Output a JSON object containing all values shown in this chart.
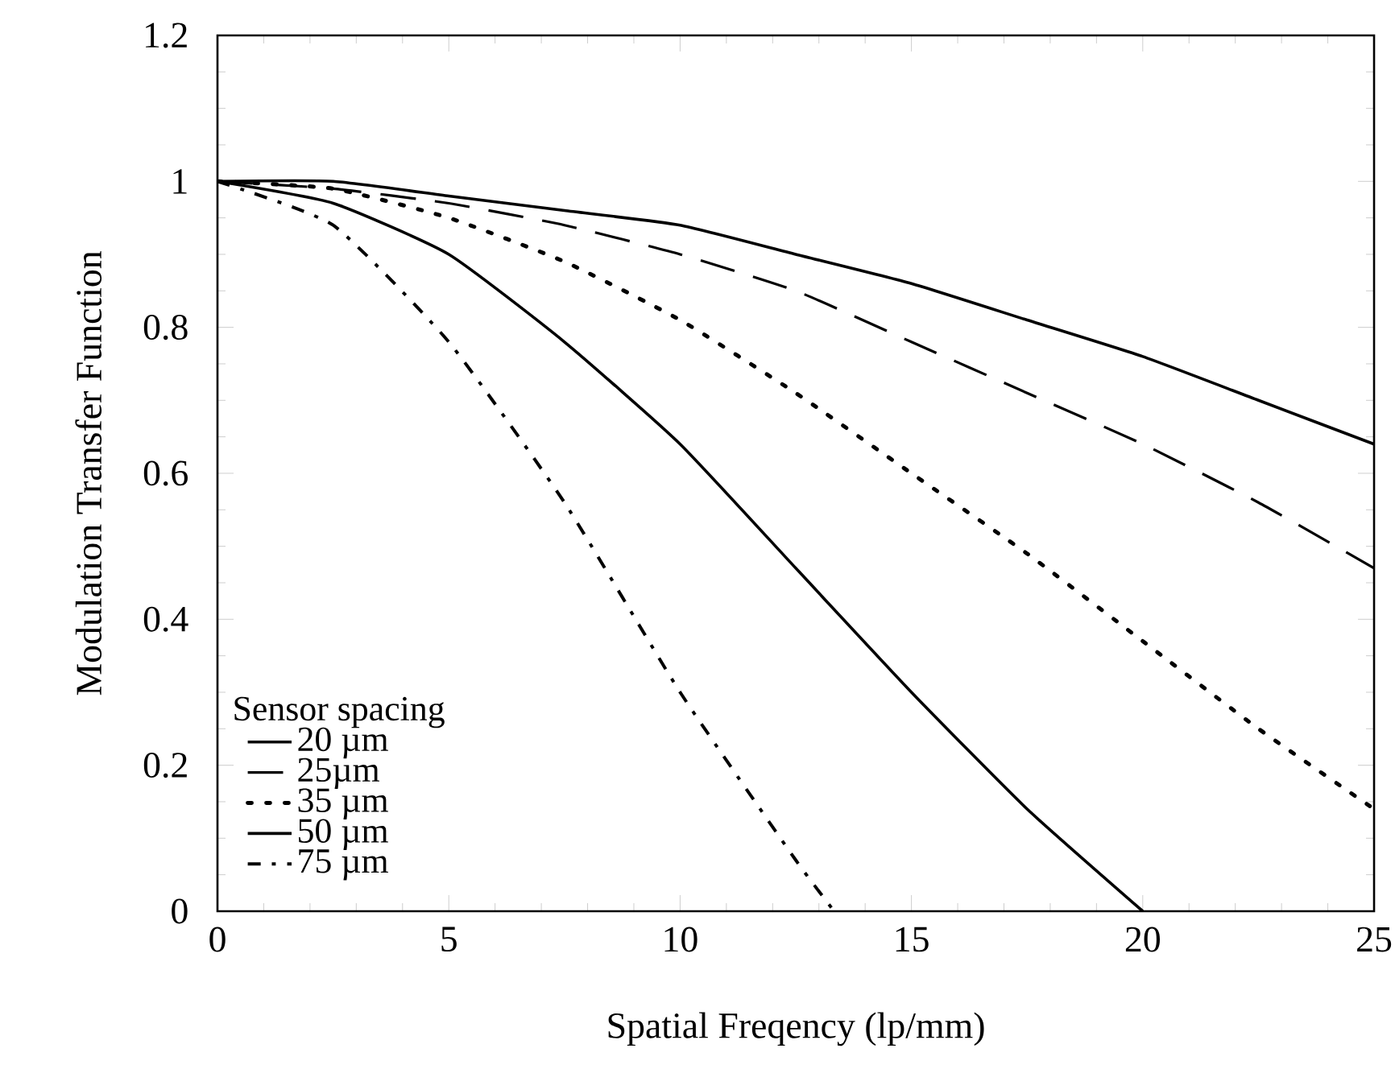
{
  "chart_data": {
    "type": "line",
    "xlabel": "Spatial Freqency (lp/mm)",
    "ylabel": "Modulation Transfer Function",
    "legend_title": "Sensor spacing",
    "x": [
      0,
      2.5,
      5,
      7.5,
      10,
      12.5,
      15,
      17.5,
      20,
      22.5,
      25
    ],
    "series": [
      {
        "name": "20 µm",
        "color": "#000000",
        "line_style": "solid",
        "values": [
          1,
          1.0,
          0.98,
          0.96,
          0.94,
          0.9,
          0.86,
          0.81,
          0.76,
          0.7,
          0.64
        ]
      },
      {
        "name": "25µm",
        "color": "#000000",
        "line_style": "dashed",
        "values": [
          1,
          0.99,
          0.97,
          0.94,
          0.9,
          0.85,
          0.78,
          0.71,
          0.64,
          0.56,
          0.47
        ]
      },
      {
        "name": "35 µm",
        "color": "#000000",
        "line_style": "dotted",
        "values": [
          1,
          0.99,
          0.95,
          0.89,
          0.81,
          0.71,
          0.6,
          0.49,
          0.37,
          0.25,
          0.14
        ]
      },
      {
        "name": "50 µm",
        "color": "#000000",
        "line_style": "solid",
        "x": [
          0,
          2.5,
          5,
          7.5,
          10,
          12.5,
          15,
          17.5,
          20
        ],
        "values": [
          1,
          0.97,
          0.9,
          0.78,
          0.64,
          0.47,
          0.3,
          0.14,
          0
        ]
      },
      {
        "name": "75 µm",
        "color": "#000000",
        "line_style": "dashdot",
        "x": [
          0,
          2.5,
          5,
          7.5,
          10,
          12.5,
          13.33
        ],
        "values": [
          1,
          0.94,
          0.78,
          0.56,
          0.3,
          0.07,
          0
        ]
      }
    ],
    "xlim": [
      0,
      25
    ],
    "ylim": [
      0,
      1.2
    ],
    "xticks": [
      0,
      5,
      10,
      15,
      20,
      25
    ],
    "yticks": [
      0,
      0.2,
      0.4,
      0.6,
      0.8,
      1,
      1.2
    ],
    "grid": false,
    "legend": "bottom left",
    "marker": "none"
  }
}
